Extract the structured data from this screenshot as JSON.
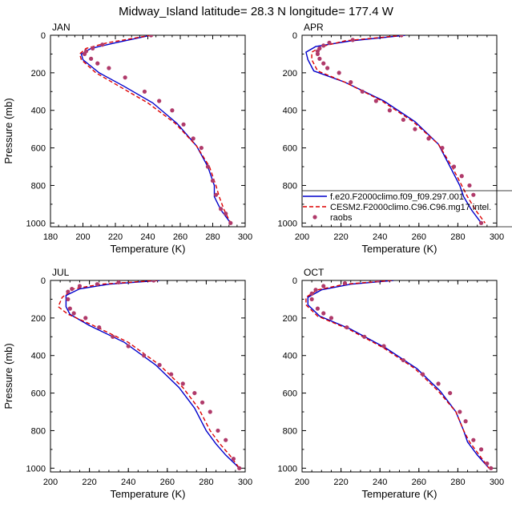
{
  "title": "Midway_Island  latitude= 28.3 N longitude= 177.4 W",
  "colors": {
    "model1": "#0000cc",
    "model2": "#dd0000",
    "obs": "#b03a6a"
  },
  "legend": {
    "items": [
      {
        "label": "f.e20.F2000climo.f09_f09.297.001",
        "style": "solid",
        "color": "#0000cc"
      },
      {
        "label": "CESM2.F2000climo.C96.C96.mg17.intel.",
        "style": "dashed",
        "color": "#dd0000"
      },
      {
        "label": "raobs",
        "style": "marker",
        "color": "#b03a6a"
      }
    ]
  },
  "chart_data": [
    {
      "type": "line",
      "panel": "JAN",
      "xlabel": "Temperature (K)",
      "ylabel": "Pressure (mb)",
      "xlim": [
        180,
        300
      ],
      "ylim": [
        1020,
        0
      ],
      "xticks": [
        180,
        200,
        220,
        240,
        260,
        280,
        300
      ],
      "yticks": [
        0,
        200,
        400,
        600,
        800,
        1000
      ],
      "series": [
        {
          "role": "model1",
          "name": "f.e20.F2000climo.f09_f09.297.001",
          "x": [
            242,
            220,
            205,
            199,
            200,
            210,
            225,
            243,
            258,
            270,
            277,
            281,
            281,
            285,
            291
          ],
          "y": [
            0,
            40,
            70,
            100,
            130,
            200,
            270,
            360,
            470,
            590,
            700,
            800,
            860,
            930,
            1000
          ]
        },
        {
          "role": "model2",
          "name": "CESM2.F2000climo.C96.C96.mg17.intel.",
          "x": [
            242,
            215,
            202,
            198,
            199,
            208,
            222,
            240,
            257,
            270,
            278,
            282,
            284,
            287,
            291
          ],
          "y": [
            0,
            40,
            70,
            100,
            130,
            200,
            270,
            360,
            470,
            590,
            700,
            800,
            860,
            930,
            1000
          ]
        },
        {
          "role": "obs",
          "name": "raobs",
          "x": [
            242,
            212,
            206,
            202,
            201,
            205,
            209,
            216,
            226,
            238,
            247,
            255,
            262,
            268,
            273,
            277,
            280,
            282,
            285,
            288,
            291
          ],
          "y": [
            0,
            50,
            70,
            85,
            100,
            125,
            150,
            175,
            225,
            300,
            350,
            400,
            475,
            550,
            600,
            700,
            775,
            850,
            925,
            950,
            1000
          ]
        }
      ]
    },
    {
      "type": "line",
      "panel": "APR",
      "xlabel": "Temperature (K)",
      "ylabel": "",
      "xlim": [
        200,
        300
      ],
      "ylim": [
        1020,
        0
      ],
      "xticks": [
        200,
        220,
        240,
        260,
        280,
        300
      ],
      "yticks": [
        0,
        200,
        400,
        600,
        800,
        1000
      ],
      "series": [
        {
          "role": "model1",
          "name": "f.e20.F2000climo.f09_f09.297.001",
          "x": [
            253,
            225,
            207,
            202,
            203,
            206,
            222,
            242,
            258,
            270,
            276,
            281,
            283,
            287,
            292
          ],
          "y": [
            0,
            30,
            60,
            90,
            130,
            190,
            250,
            350,
            460,
            580,
            700,
            800,
            860,
            930,
            1000
          ]
        },
        {
          "role": "model2",
          "name": "CESM2.F2000climo.C96.C96.mg17.intel.",
          "x": [
            252,
            222,
            210,
            205,
            205,
            208,
            222,
            241,
            257,
            270,
            277,
            282,
            285,
            289,
            294
          ],
          "y": [
            0,
            30,
            60,
            90,
            130,
            190,
            250,
            350,
            460,
            580,
            700,
            800,
            860,
            930,
            1000
          ]
        },
        {
          "role": "obs",
          "name": "raobs",
          "x": [
            251,
            226,
            214,
            211,
            209,
            208,
            208,
            209,
            211,
            213,
            219,
            225,
            231,
            238,
            245,
            252,
            258,
            265,
            272,
            278,
            282,
            286,
            288,
            292
          ],
          "y": [
            0,
            25,
            40,
            55,
            70,
            85,
            100,
            125,
            150,
            175,
            200,
            250,
            300,
            350,
            400,
            450,
            500,
            550,
            600,
            700,
            750,
            800,
            850,
            1000
          ]
        }
      ]
    },
    {
      "type": "line",
      "panel": "JUL",
      "xlabel": "Temperature (K)",
      "ylabel": "Pressure (mb)",
      "xlim": [
        200,
        300
      ],
      "ylim": [
        1020,
        0
      ],
      "xticks": [
        200,
        220,
        240,
        260,
        280,
        300
      ],
      "yticks": [
        0,
        200,
        400,
        600,
        800,
        1000
      ],
      "series": [
        {
          "role": "model1",
          "name": "f.e20.F2000climo.f09_f09.297.001",
          "x": [
            256,
            230,
            215,
            208,
            208,
            210,
            220,
            238,
            254,
            266,
            274,
            280,
            285,
            290,
            297
          ],
          "y": [
            0,
            20,
            45,
            80,
            140,
            180,
            240,
            330,
            450,
            570,
            680,
            800,
            870,
            930,
            1000
          ]
        },
        {
          "role": "model2",
          "name": "CESM2.F2000climo.C96.C96.mg17.intel.",
          "x": [
            255,
            226,
            212,
            206,
            204,
            209,
            222,
            240,
            256,
            268,
            276,
            282,
            287,
            292,
            297
          ],
          "y": [
            0,
            20,
            45,
            90,
            140,
            180,
            240,
            330,
            450,
            570,
            680,
            800,
            870,
            930,
            1000
          ]
        },
        {
          "role": "obs",
          "name": "raobs",
          "x": [
            253,
            235,
            224,
            215,
            211,
            209,
            209,
            210,
            212,
            218,
            225,
            232,
            240,
            248,
            256,
            262,
            268,
            274,
            278,
            282,
            286,
            290,
            294,
            297
          ],
          "y": [
            0,
            10,
            20,
            30,
            45,
            60,
            100,
            150,
            175,
            200,
            250,
            300,
            350,
            400,
            450,
            500,
            550,
            600,
            650,
            700,
            800,
            850,
            950,
            1000
          ]
        }
      ]
    },
    {
      "type": "line",
      "panel": "OCT",
      "xlabel": "Temperature (K)",
      "ylabel": "",
      "xlim": [
        200,
        300
      ],
      "ylim": [
        1020,
        0
      ],
      "xticks": [
        200,
        220,
        240,
        260,
        280,
        300
      ],
      "yticks": [
        0,
        200,
        400,
        600,
        800,
        1000
      ],
      "series": [
        {
          "role": "model1",
          "name": "f.e20.F2000climo.f09_f09.297.001",
          "x": [
            247,
            225,
            210,
            203,
            203,
            209,
            225,
            243,
            259,
            271,
            279,
            283,
            285,
            290,
            296
          ],
          "y": [
            0,
            20,
            50,
            90,
            130,
            190,
            260,
            360,
            470,
            590,
            700,
            800,
            860,
            930,
            1000
          ]
        },
        {
          "role": "model2",
          "name": "CESM2.F2000climo.C96.C96.mg17.intel.",
          "x": [
            246,
            222,
            208,
            202,
            202,
            208,
            224,
            242,
            258,
            270,
            279,
            283,
            286,
            291,
            296
          ],
          "y": [
            0,
            20,
            50,
            90,
            130,
            190,
            260,
            360,
            470,
            590,
            700,
            800,
            860,
            930,
            1000
          ]
        },
        {
          "role": "obs",
          "name": "raobs",
          "x": [
            239,
            222,
            211,
            207,
            205,
            205,
            208,
            211,
            215,
            223,
            232,
            242,
            252,
            262,
            270,
            276,
            281,
            284,
            288,
            292,
            295,
            297
          ],
          "y": [
            0,
            15,
            30,
            50,
            70,
            100,
            150,
            175,
            200,
            250,
            300,
            350,
            425,
            500,
            550,
            600,
            700,
            750,
            850,
            900,
            975,
            1000
          ]
        }
      ]
    }
  ]
}
